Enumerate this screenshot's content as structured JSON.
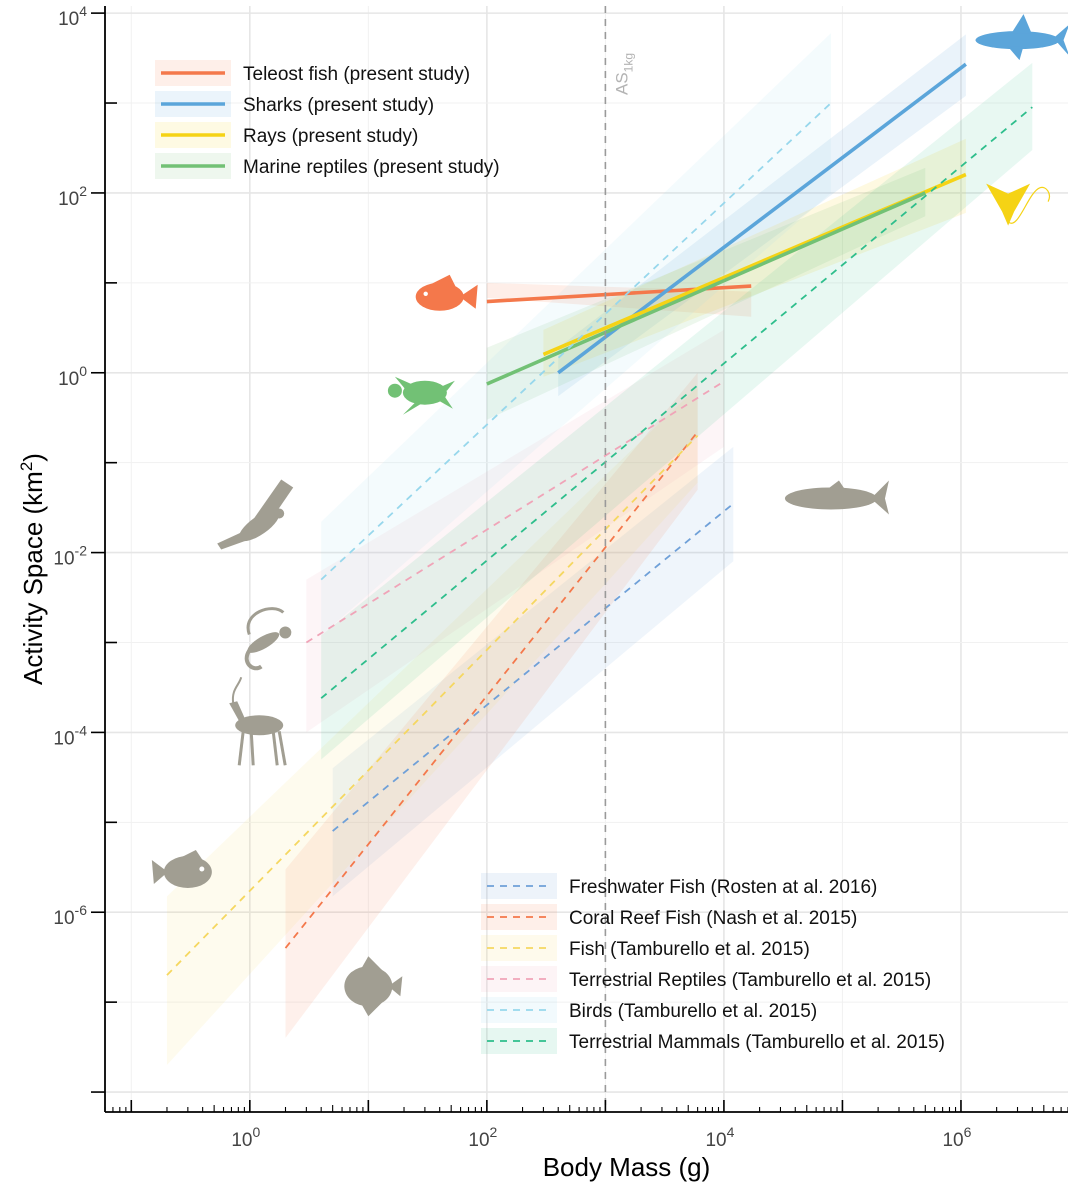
{
  "chart_data": {
    "type": "line",
    "x_scale": "log",
    "y_scale": "log",
    "xlabel": "Body Mass (g)",
    "ylabel_main": "Activity Space (km",
    "ylabel_sup": "2",
    "ylabel_close": ")",
    "xlim": [
      0.06,
      8000000
    ],
    "ylim": [
      6e-09,
      12000
    ],
    "x_ticks": [
      {
        "base": "10",
        "exp": "0",
        "value": 1
      },
      {
        "base": "10",
        "exp": "2",
        "value": 100
      },
      {
        "base": "10",
        "exp": "4",
        "value": 10000
      },
      {
        "base": "10",
        "exp": "6",
        "value": 1000000
      }
    ],
    "y_ticks": [
      {
        "base": "10",
        "exp": "4",
        "value": 10000
      },
      {
        "base": "10",
        "exp": "2",
        "value": 100
      },
      {
        "base": "10",
        "exp": "0",
        "value": 1
      },
      {
        "base": "10",
        "exp": "-2",
        "value": 0.01
      },
      {
        "base": "10",
        "exp": "-4",
        "value": 0.0001
      },
      {
        "base": "10",
        "exp": "-6",
        "value": 1e-06
      }
    ],
    "grid": true,
    "reference_line": {
      "x": 1000,
      "label_main": "AS",
      "label_sub": "1kg"
    },
    "series": [
      {
        "name": "Teleost fish (present study)",
        "group": "present",
        "style": "solid",
        "color": "#F4784B",
        "x_range": [
          100,
          17000
        ],
        "y_range": [
          6.2,
          9.2
        ],
        "band": [
          [
            6.8,
            10.0
          ],
          [
            4.2,
            8.0
          ]
        ]
      },
      {
        "name": "Sharks (present study)",
        "group": "present",
        "style": "solid",
        "color": "#5BA5DA",
        "x_range": [
          400,
          1100000
        ],
        "y_range": [
          1.0,
          2700
        ],
        "band": [
          [
            0.55,
            1.9
          ],
          [
            1200,
            5800
          ]
        ]
      },
      {
        "name": "Rays (present study)",
        "group": "present",
        "style": "solid",
        "color": "#F5D315",
        "x_range": [
          300,
          1100000
        ],
        "y_range": [
          1.6,
          160
        ],
        "band": [
          [
            0.9,
            3.0
          ],
          [
            60,
            400
          ]
        ]
      },
      {
        "name": "Marine reptiles (present study)",
        "group": "present",
        "style": "solid",
        "color": "#72C175",
        "x_range": [
          100,
          500000
        ],
        "y_range": [
          0.75,
          100
        ],
        "band": [
          [
            0.3,
            1.9
          ],
          [
            55,
            190
          ]
        ]
      },
      {
        "name": "Freshwater Fish (Rosten at al. 2016)",
        "group": "literature",
        "style": "dashed",
        "color": "#6FA0D8",
        "x_range": [
          5,
          12000
        ],
        "y_range": [
          8e-06,
          0.035
        ],
        "band": [
          [
            1.5e-06,
            4e-05
          ],
          [
            0.008,
            0.15
          ]
        ]
      },
      {
        "name": "Coral Reef Fish (Nash et al. 2015)",
        "group": "literature",
        "style": "dashed",
        "color": "#F4784B",
        "x_range": [
          2,
          6000
        ],
        "y_range": [
          4e-07,
          0.22
        ],
        "band": [
          [
            4e-08,
            3e-06
          ],
          [
            0.05,
            1.0
          ]
        ]
      },
      {
        "name": "Fish (Tamburello et al. 2015)",
        "group": "literature",
        "style": "dashed",
        "color": "#F5D760",
        "x_range": [
          0.2,
          6000
        ],
        "y_range": [
          2e-07,
          0.2
        ],
        "band": [
          [
            2e-08,
            1.5e-06
          ],
          [
            0.06,
            0.7
          ]
        ]
      },
      {
        "name": "Terrestrial Reptiles (Tamburello et al. 2015)",
        "group": "literature",
        "style": "dashed",
        "color": "#F0A4B8",
        "x_range": [
          3,
          10000
        ],
        "y_range": [
          0.001,
          0.8
        ],
        "band": [
          [
            0.0001,
            0.005
          ],
          [
            0.15,
            3.0
          ]
        ]
      },
      {
        "name": "Birds (Tamburello et al. 2015)",
        "group": "literature",
        "style": "dashed",
        "color": "#97D7EC",
        "x_range": [
          4,
          80000
        ],
        "y_range": [
          0.005,
          1000
        ],
        "band": [
          [
            0.0012,
            0.022
          ],
          [
            100,
            6000
          ]
        ]
      },
      {
        "name": "Terrestrial Mammals (Tamburello et al. 2015)",
        "group": "literature",
        "style": "dashed",
        "color": "#2EBE8C",
        "x_range": [
          4,
          4000000
        ],
        "y_range": [
          0.00024,
          900
        ],
        "band": [
          [
            5e-05,
            0.0012
          ],
          [
            300,
            2800
          ]
        ]
      }
    ],
    "silhouettes": [
      {
        "name": "teleost-fish-icon",
        "color": "#F4784B",
        "x": 40,
        "y": 7
      },
      {
        "name": "sea-turtle-icon",
        "color": "#72C175",
        "x": 30,
        "y": 0.6
      },
      {
        "name": "shark-icon",
        "color": "#5BA5DA",
        "x": 3000000,
        "y": 5000
      },
      {
        "name": "ray-icon",
        "color": "#F5D315",
        "x": 2500000,
        "y": 80
      },
      {
        "name": "salmon-icon",
        "color": "#A19E92",
        "x": 80000,
        "y": 0.04
      },
      {
        "name": "bird-icon",
        "color": "#A19E92",
        "x": 1.2,
        "y": 0.02
      },
      {
        "name": "lizard-icon",
        "color": "#A19E92",
        "x": 1.3,
        "y": 0.001
      },
      {
        "name": "antelope-icon",
        "color": "#A19E92",
        "x": 1.2,
        "y": 0.00012
      },
      {
        "name": "reef-fish-icon",
        "color": "#A19E92",
        "x": 0.3,
        "y": 2.8e-06
      },
      {
        "name": "angelfish-icon",
        "color": "#A19E92",
        "x": 10,
        "y": 1.5e-07
      }
    ]
  }
}
